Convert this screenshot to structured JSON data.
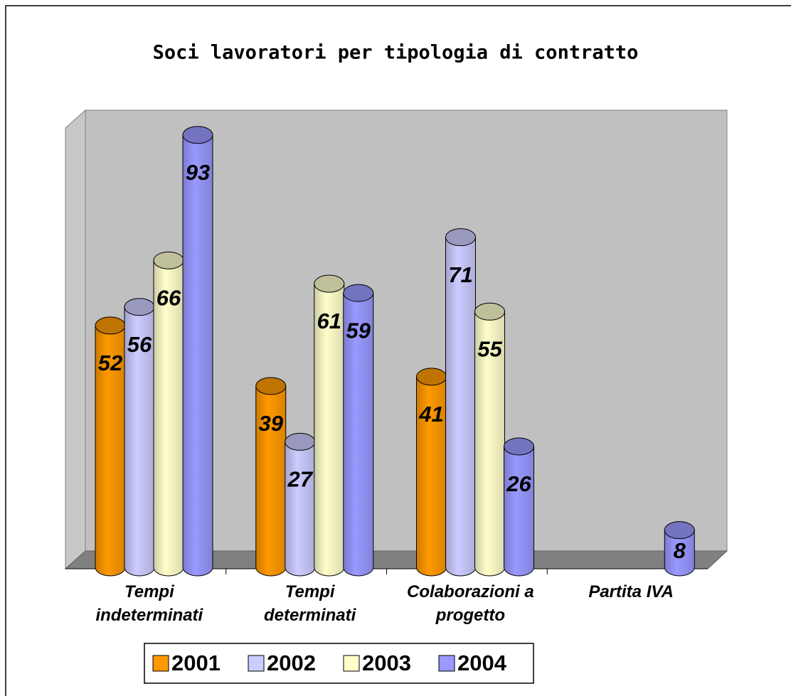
{
  "chart_data": {
    "type": "bar3d",
    "title": "Soci lavoratori per tipologia di contratto",
    "categories": [
      "Tempi indeterminati",
      "Tempi determinati",
      "Colaborazioni a progetto",
      "Partita IVA"
    ],
    "series": [
      {
        "name": "2001",
        "color": "#ff9900",
        "values": [
          52,
          39,
          41,
          null
        ]
      },
      {
        "name": "2002",
        "color": "#ccccff",
        "values": [
          56,
          27,
          71,
          null
        ]
      },
      {
        "name": "2003",
        "color": "#ffffcc",
        "values": [
          66,
          61,
          55,
          null
        ]
      },
      {
        "name": "2004",
        "color": "#9999ff",
        "values": [
          93,
          59,
          26,
          8
        ]
      }
    ]
  }
}
